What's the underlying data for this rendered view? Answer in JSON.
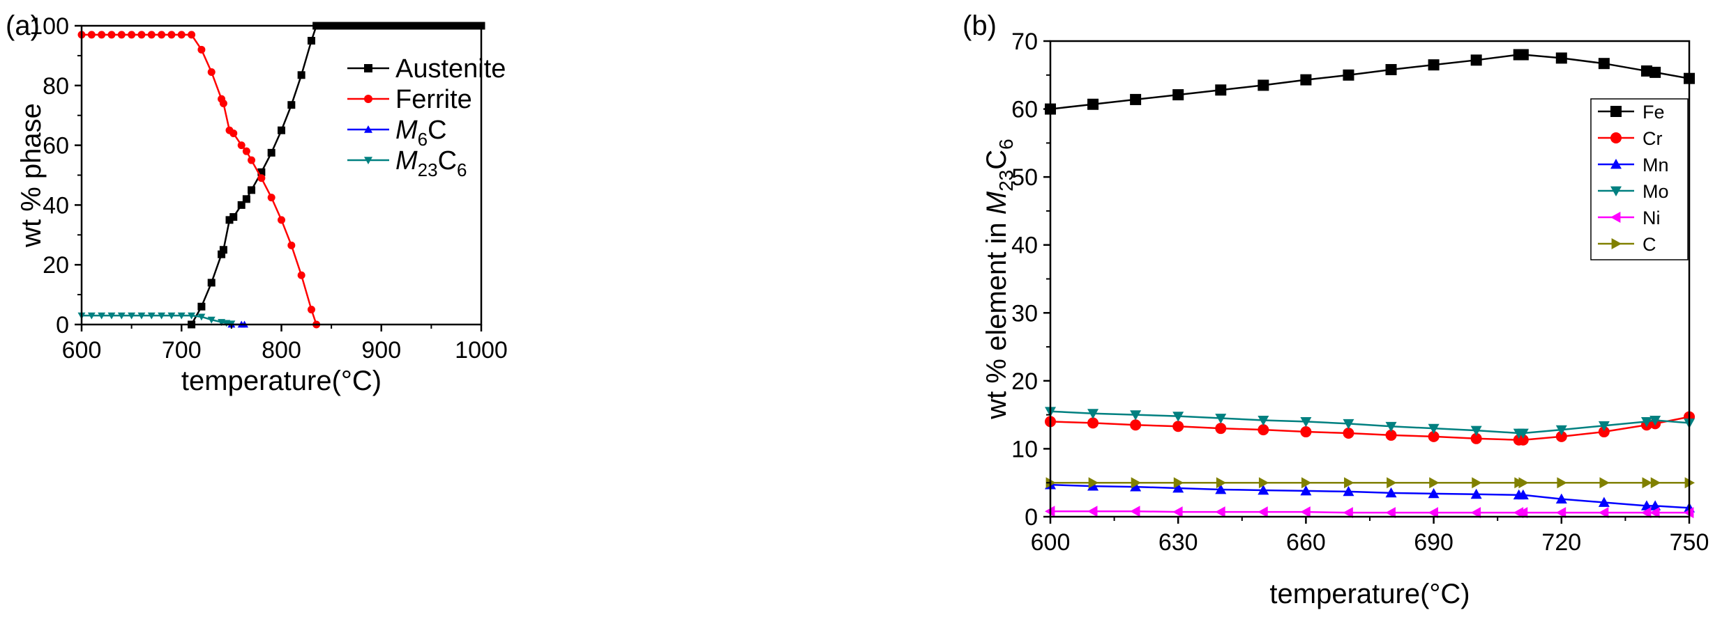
{
  "chart_data": [
    {
      "type": "line",
      "panel_label": "(a)",
      "xlabel": "temperature(°C)",
      "ylabel": "wt % phase",
      "xlim": [
        600,
        1000
      ],
      "ylim": [
        0,
        100
      ],
      "xticks": [
        600,
        700,
        800,
        900,
        1000
      ],
      "yticks": [
        0,
        20,
        40,
        60,
        80,
        100
      ],
      "legend_position": "upper-right",
      "series": [
        {
          "name": "Austenite",
          "legend": {
            "main": "Austenite"
          },
          "color": "#000000",
          "marker": "square",
          "x": [
            710,
            720,
            730,
            740,
            742,
            748,
            752,
            760,
            765,
            770,
            780,
            790,
            800,
            810,
            820,
            830,
            835,
            840,
            845,
            850,
            855,
            860,
            865,
            870,
            875,
            880,
            885,
            890,
            895,
            900,
            905,
            910,
            915,
            920,
            925,
            930,
            935,
            940,
            945,
            950,
            955,
            960,
            965,
            970,
            975,
            980,
            985,
            990,
            995,
            1000
          ],
          "y": [
            0,
            6,
            14,
            23.5,
            25,
            35,
            36,
            40,
            42,
            45,
            51,
            57.5,
            65,
            73.5,
            83.5,
            95,
            100,
            100,
            100,
            100,
            100,
            100,
            100,
            100,
            100,
            100,
            100,
            100,
            100,
            100,
            100,
            100,
            100,
            100,
            100,
            100,
            100,
            100,
            100,
            100,
            100,
            100,
            100,
            100,
            100,
            100,
            100,
            100,
            100,
            100
          ]
        },
        {
          "name": "Ferrite",
          "legend": {
            "main": "Ferrite"
          },
          "color": "#ff0000",
          "marker": "circle",
          "x": [
            600,
            610,
            620,
            630,
            640,
            650,
            660,
            670,
            680,
            690,
            700,
            710,
            720,
            730,
            740,
            742,
            748,
            752,
            760,
            765,
            770,
            780,
            790,
            800,
            810,
            820,
            830,
            835
          ],
          "y": [
            97,
            97,
            97,
            97,
            97,
            97,
            97,
            97,
            97,
            97,
            97,
            97,
            92,
            84.5,
            75.5,
            74,
            65,
            64,
            60,
            58,
            55,
            49,
            42.5,
            35,
            26.5,
            16.5,
            5,
            0
          ]
        },
        {
          "name": "M6C",
          "legend": {
            "italic": "M",
            "sub1": "6",
            "main": "C",
            "sub2": ""
          },
          "color": "#0000ff",
          "marker": "triangle-up",
          "x": [
            750,
            760,
            763
          ],
          "y": [
            0,
            0,
            0
          ]
        },
        {
          "name": "M23C6",
          "legend": {
            "italic": "M",
            "sub1": "23",
            "main": "C",
            "sub2": "6"
          },
          "color": "#008080",
          "marker": "triangle-down",
          "x": [
            600,
            610,
            620,
            630,
            640,
            650,
            660,
            670,
            680,
            690,
            700,
            710,
            720,
            730,
            740,
            745,
            750
          ],
          "y": [
            3,
            3,
            3,
            3,
            3,
            3,
            3,
            3,
            3,
            3,
            3,
            3,
            2.6,
            1.6,
            0.8,
            0.5,
            0.3
          ]
        }
      ]
    },
    {
      "type": "line",
      "panel_label": "(b)",
      "xlabel": "temperature(°C)",
      "ylabel": {
        "main": "wt % element in ",
        "italic": "M",
        "sub1": "23",
        "main2": "C",
        "sub2": "6"
      },
      "xlim": [
        600,
        750
      ],
      "ylim": [
        0,
        70
      ],
      "xticks": [
        600,
        630,
        660,
        690,
        720,
        750
      ],
      "yticks": [
        0,
        10,
        20,
        30,
        40,
        50,
        60,
        70
      ],
      "legend_position": "upper-right",
      "x": [
        600,
        610,
        620,
        630,
        640,
        650,
        660,
        670,
        680,
        690,
        700,
        710,
        711,
        720,
        730,
        740,
        742,
        750
      ],
      "series": [
        {
          "name": "Fe",
          "color": "#000000",
          "marker": "square",
          "y": [
            60,
            60.7,
            61.4,
            62.1,
            62.8,
            63.5,
            64.3,
            65,
            65.8,
            66.5,
            67.2,
            68,
            68,
            67.5,
            66.7,
            65.6,
            65.4,
            64.5
          ]
        },
        {
          "name": "Cr",
          "color": "#ff0000",
          "marker": "circle",
          "y": [
            14,
            13.8,
            13.5,
            13.3,
            13,
            12.8,
            12.5,
            12.3,
            12,
            11.8,
            11.5,
            11.3,
            11.3,
            11.8,
            12.5,
            13.5,
            13.7,
            14.7
          ]
        },
        {
          "name": "Mn",
          "color": "#0000ff",
          "marker": "triangle-up",
          "y": [
            4.7,
            4.5,
            4.4,
            4.2,
            4,
            3.9,
            3.8,
            3.7,
            3.5,
            3.4,
            3.3,
            3.2,
            3.2,
            2.6,
            2.1,
            1.6,
            1.6,
            1.3
          ]
        },
        {
          "name": "Mo",
          "color": "#008080",
          "marker": "triangle-down",
          "y": [
            15.5,
            15.2,
            15,
            14.8,
            14.5,
            14.2,
            14,
            13.7,
            13.3,
            13,
            12.7,
            12.3,
            12.3,
            12.8,
            13.4,
            14,
            14.2,
            13.8
          ]
        },
        {
          "name": "Ni",
          "color": "#ff00ff",
          "marker": "triangle-left",
          "y": [
            0.8,
            0.8,
            0.8,
            0.7,
            0.7,
            0.7,
            0.7,
            0.6,
            0.6,
            0.6,
            0.6,
            0.6,
            0.6,
            0.6,
            0.6,
            0.6,
            0.6,
            0.6
          ]
        },
        {
          "name": "C",
          "color": "#808000",
          "marker": "triangle-right",
          "y": [
            5,
            5,
            5,
            5,
            5,
            5,
            5,
            5,
            5,
            5,
            5,
            5,
            5,
            5,
            5,
            5,
            5,
            5
          ]
        }
      ]
    }
  ]
}
